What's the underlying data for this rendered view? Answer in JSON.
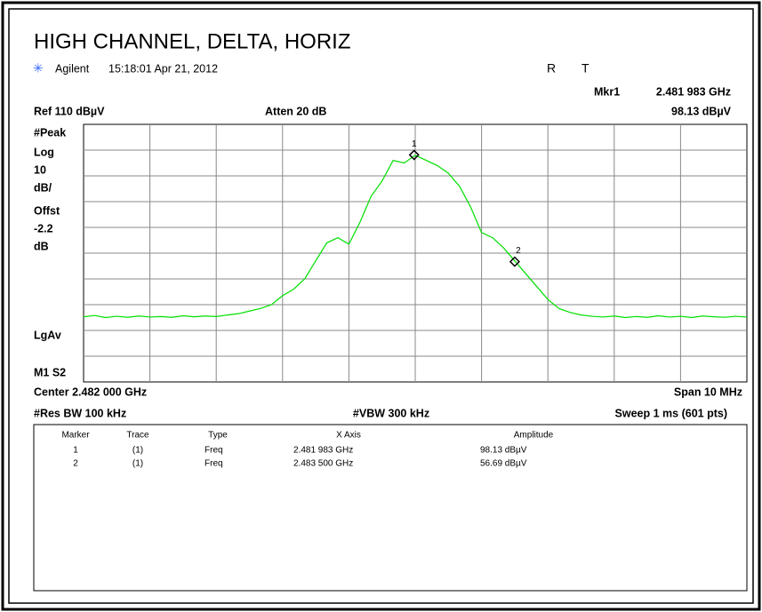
{
  "header": {
    "title": "HIGH CHANNEL, DELTA, HORIZ",
    "brand": "Agilent",
    "timestamp": "15:18:01  Apr 21, 2012",
    "status": [
      "R",
      "T"
    ]
  },
  "marker_readout": {
    "label": "Mkr1",
    "freq": "2.481 983 GHz",
    "amplitude": "98.13 dBµV"
  },
  "settings": {
    "ref": "Ref 110 dBµV",
    "atten": "Atten 20 dB",
    "center": "Center 2.482 000 GHz",
    "span": "Span 10 MHz",
    "rbw": "#Res BW 100 kHz",
    "vbw": "#VBW 300 kHz",
    "sweep": "Sweep 1 ms (601 pts)"
  },
  "side_labels": [
    "#Peak",
    "Log",
    "10",
    "dB/",
    "Offst",
    "-2.2",
    "dB",
    "LgAv",
    "M1  S2"
  ],
  "trace": {
    "xlim": [
      2.477,
      2.487
    ],
    "ylim": [
      10,
      110
    ],
    "color": "#00e000",
    "values": [
      35.3,
      35.8,
      35,
      35.5,
      35.1,
      35.6,
      35.2,
      35.4,
      35.1,
      35.7,
      35.3,
      35.6,
      35.4,
      36,
      36.5,
      37.5,
      38.5,
      40,
      43.5,
      46,
      50,
      57,
      64,
      66,
      63.5,
      72,
      82,
      88,
      96,
      95,
      98,
      96,
      94,
      91,
      86,
      78,
      68,
      66,
      62,
      57,
      52,
      47,
      42,
      38.5,
      37,
      36,
      35.5,
      35.2,
      35.6,
      35,
      35.4,
      35.1,
      35.7,
      35.2,
      35.5,
      35,
      35.6,
      35.3,
      35.1,
      35.5,
      35.2
    ]
  },
  "markers": [
    {
      "label": "1",
      "x": 2.481983,
      "y": 98.13
    },
    {
      "label": "2",
      "x": 2.4835,
      "y": 56.69
    }
  ],
  "table": {
    "columns": [
      "Marker",
      "Trace",
      "Type",
      "X Axis",
      "Amplitude"
    ],
    "rows": [
      [
        "1",
        "(1)",
        "Freq",
        "2.481 983 GHz",
        "98.13 dBµV"
      ],
      [
        "2",
        "(1)",
        "Freq",
        "2.483 500 GHz",
        "56.69 dBµV"
      ]
    ]
  }
}
